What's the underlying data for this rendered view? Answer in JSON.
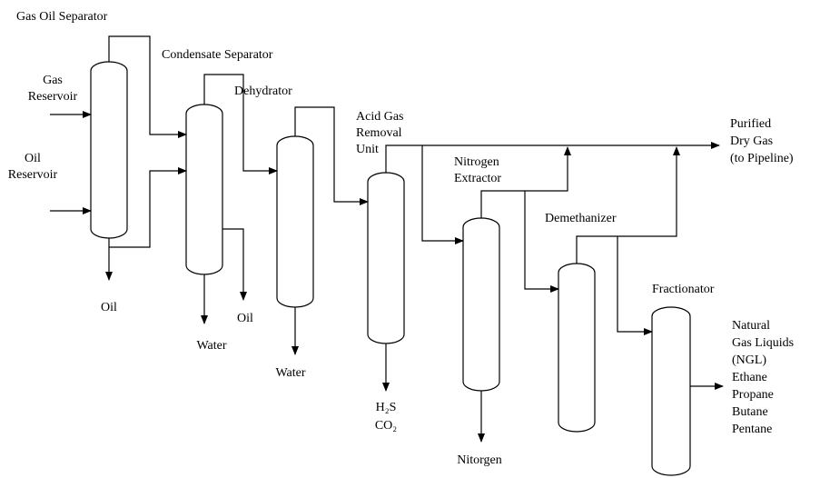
{
  "labels": [
    {
      "lines": [
        "Gas Oil Separator"
      ]
    },
    {
      "lines": [
        "Condensate Separator"
      ]
    },
    {
      "lines": [
        "Dehydrator"
      ]
    },
    {
      "lines": [
        "Acid Gas",
        "Removal",
        "Unit"
      ]
    },
    {
      "lines": [
        "Purified",
        "Dry Gas",
        "(to Pipeline)"
      ]
    },
    {
      "lines": [
        "Nitrogen",
        "Extractor"
      ]
    },
    {
      "lines": [
        "Demethanizer"
      ]
    },
    {
      "lines": [
        "Fractionator"
      ]
    },
    {
      "lines": [
        "Gas",
        "Reservoir"
      ]
    },
    {
      "lines": [
        "Oil",
        "Reservoir"
      ]
    },
    {
      "lines": [
        "Oil"
      ]
    },
    {
      "lines": [
        "Oil"
      ]
    },
    {
      "lines": [
        "Water"
      ]
    },
    {
      "lines": [
        "Water"
      ]
    },
    {
      "lines": [
        "H₂S",
        "CO₂"
      ]
    },
    {
      "lines": [
        "Nitorgen"
      ]
    },
    {
      "lines": [
        "Natural",
        "Gas Liquids",
        "(NGL)",
        "Ethane",
        "Propane",
        "Butane",
        "Pentane"
      ]
    }
  ]
}
